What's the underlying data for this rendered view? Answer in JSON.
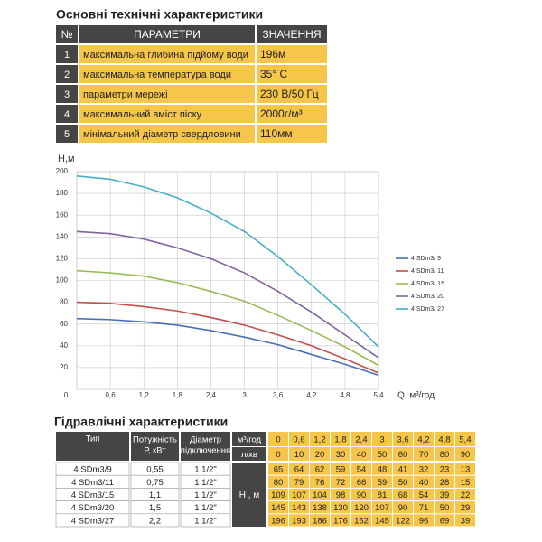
{
  "specs": {
    "title": "Основні технічні характеристики",
    "header": [
      "№",
      "ПАРАМЕТРИ",
      "ЗНАЧЕННЯ"
    ],
    "rows": [
      [
        "1",
        "максимальна глибина підйому води",
        "196м"
      ],
      [
        "2",
        "максимальна температура води",
        "35° С"
      ],
      [
        "3",
        "параметри мережі",
        "230 В/50 Гц"
      ],
      [
        "4",
        "максимальний вміст піску",
        "2000г/м³"
      ],
      [
        "5",
        "мінімальний діаметр свердловини",
        "110мм"
      ]
    ]
  },
  "chart_data": {
    "type": "line",
    "y_label": "Н,м",
    "x_label": "Q, м³/год",
    "x": [
      0,
      0.6,
      1.2,
      1.8,
      2.4,
      3,
      3.6,
      4.2,
      4.8,
      5.4
    ],
    "xlim": [
      0,
      5.4
    ],
    "xticks": [
      0,
      {
        "value": 0.6,
        "label": "0,6"
      },
      {
        "value": 1.2,
        "label": "1,2"
      },
      {
        "value": 1.8,
        "label": "1,8"
      },
      {
        "value": 2.4,
        "label": "2,4"
      },
      3,
      {
        "value": 3.6,
        "label": "3,6"
      },
      {
        "value": 4.2,
        "label": "4,2"
      },
      {
        "value": 4.8,
        "label": "4,8"
      },
      {
        "value": 5.4,
        "label": "5,4"
      }
    ],
    "ylim": [
      0,
      200
    ],
    "yticks": [
      20,
      40,
      60,
      80,
      100,
      120,
      140,
      160,
      180,
      200
    ],
    "grid": true,
    "legend": "right",
    "series": [
      {
        "name": "4 SDm3/ 9",
        "color": "#4a6fb5",
        "values": [
          65,
          64,
          62,
          59,
          54,
          48,
          41,
          32,
          23,
          13
        ]
      },
      {
        "name": "4 SDm3/ 11",
        "color": "#c0504d",
        "values": [
          80,
          79,
          76,
          72,
          66,
          59,
          50,
          40,
          28,
          15
        ]
      },
      {
        "name": "4 SDm3/ 15",
        "color": "#9bbb59",
        "values": [
          109,
          107,
          104,
          98,
          90,
          81,
          68,
          54,
          39,
          22
        ]
      },
      {
        "name": "4 SDm3/ 20",
        "color": "#8064a2",
        "values": [
          145,
          143,
          138,
          130,
          120,
          107,
          90,
          71,
          50,
          29
        ]
      },
      {
        "name": "4 SDm3/ 27",
        "color": "#4bacc6",
        "values": [
          196,
          193,
          186,
          176,
          162,
          145,
          122,
          96,
          69,
          39
        ]
      }
    ]
  },
  "hydraulics": {
    "title": "Гідравлічні характеристики",
    "header": [
      [
        "Тип"
      ],
      [
        "Потужність",
        "Р, кВт"
      ],
      [
        "Діаметр",
        "підключення"
      ]
    ],
    "flow_unit": "м³/год",
    "lpm_unit": "л/хв",
    "head_unit": "Н , м",
    "flow": [
      "0",
      "0,6",
      "1,2",
      "1,8",
      "2,4",
      "3",
      "3,6",
      "4,2",
      "4,8",
      "5,4"
    ],
    "lpm": [
      "0",
      "10",
      "20",
      "30",
      "40",
      "50",
      "60",
      "70",
      "80",
      "90"
    ],
    "rows": [
      [
        "4 SDm3/9",
        "0,55",
        "1 1/2\""
      ],
      [
        "4 SDm3/11",
        "0,75",
        "1 1/2\""
      ],
      [
        "4 SDm3/15",
        "1,1",
        "1 1/2\""
      ],
      [
        "4 SDm3/20",
        "1,5",
        "1 1/2\""
      ],
      [
        "4 SDm3/27",
        "2,2",
        "1 1/2\""
      ]
    ]
  }
}
